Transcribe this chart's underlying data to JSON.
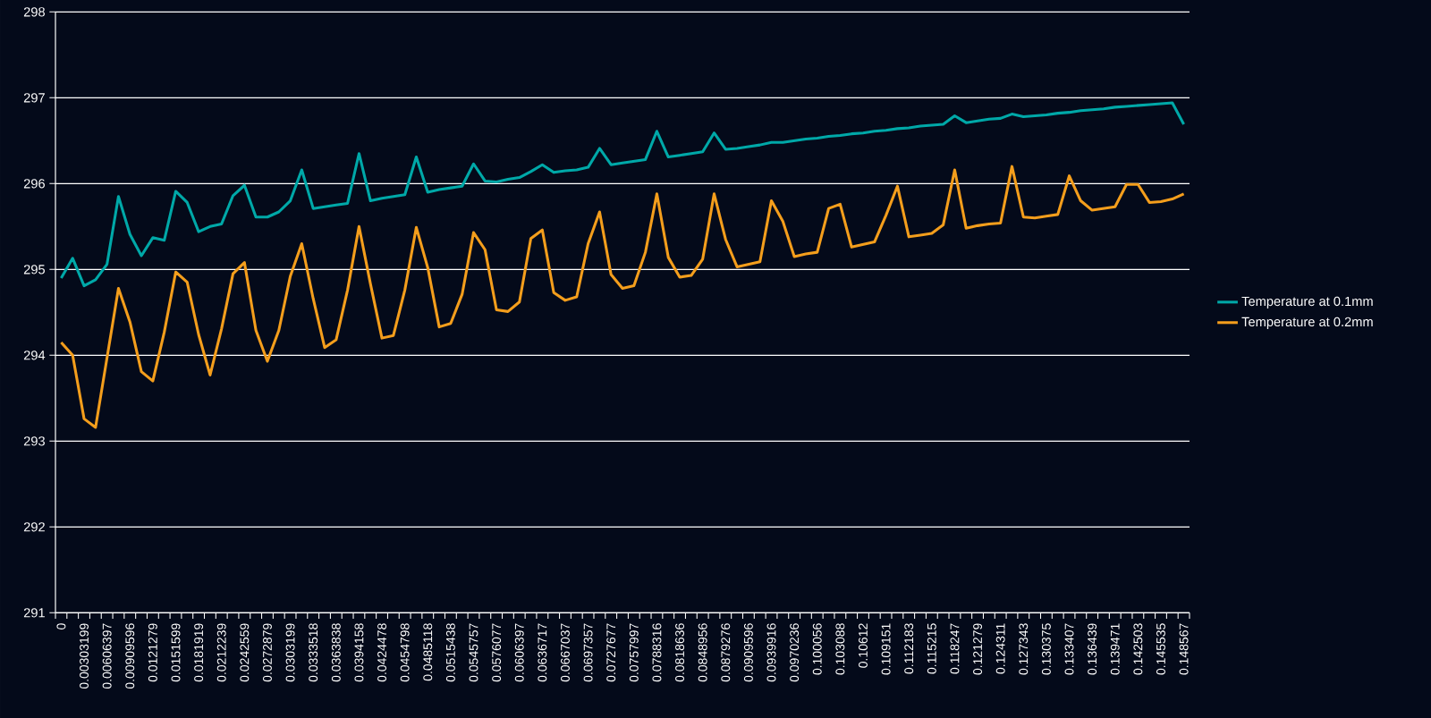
{
  "chart_data": {
    "type": "line",
    "categories": [
      "0",
      null,
      "0.00303199",
      null,
      "0.00606397",
      null,
      "0.00909596",
      null,
      "0.0121279",
      null,
      "0.0151599",
      null,
      "0.0181919",
      null,
      "0.0212239",
      null,
      "0.0242559",
      null,
      "0.0272879",
      null,
      "0.0303199",
      null,
      "0.0333518",
      null,
      "0.0363838",
      null,
      "0.0394158",
      null,
      "0.0424478",
      null,
      "0.0454798",
      null,
      "0.0485118",
      null,
      "0.0515438",
      null,
      "0.0545757",
      null,
      "0.0576077",
      null,
      "0.0606397",
      null,
      "0.0636717",
      null,
      "0.0667037",
      null,
      "0.0697357",
      null,
      "0.0727677",
      null,
      "0.0757997",
      null,
      "0.0788316",
      null,
      "0.0818636",
      null,
      "0.0848956",
      null,
      "0.0879276",
      null,
      "0.0909596",
      null,
      "0.0939916",
      null,
      "0.0970236",
      null,
      "0.100056",
      null,
      "0.103088",
      null,
      "0.10612",
      null,
      "0.109151",
      null,
      "0.112183",
      null,
      "0.115215",
      null,
      "0.118247",
      null,
      "0.121279",
      null,
      "0.124311",
      null,
      "0.127343",
      null,
      "0.130375",
      null,
      "0.133407",
      null,
      "0.136439",
      null,
      "0.139471",
      null,
      "0.142503",
      null,
      "0.145535",
      null,
      "0.148567"
    ],
    "series": [
      {
        "name": "Temperature at 0.1mm",
        "color": "#00a8a8",
        "values": [
          294.9,
          295.13,
          294.81,
          294.88,
          295.06,
          295.85,
          295.41,
          295.16,
          295.37,
          295.34,
          295.91,
          295.78,
          295.44,
          295.5,
          295.53,
          295.86,
          295.98,
          295.61,
          295.61,
          295.67,
          295.8,
          296.16,
          295.71,
          295.73,
          295.75,
          295.77,
          296.35,
          295.8,
          295.83,
          295.85,
          295.87,
          296.31,
          295.9,
          295.93,
          295.95,
          295.97,
          296.23,
          296.03,
          296.02,
          296.05,
          296.07,
          296.14,
          296.22,
          296.13,
          296.15,
          296.16,
          296.19,
          296.41,
          296.22,
          296.24,
          296.26,
          296.28,
          296.61,
          296.31,
          296.33,
          296.35,
          296.37,
          296.59,
          296.4,
          296.41,
          296.43,
          296.45,
          296.48,
          296.48,
          296.5,
          296.52,
          296.53,
          296.55,
          296.56,
          296.58,
          296.59,
          296.61,
          296.62,
          296.64,
          296.65,
          296.67,
          296.68,
          296.69,
          296.79,
          296.71,
          296.73,
          296.75,
          296.76,
          296.81,
          296.78,
          296.79,
          296.8,
          296.82,
          296.83,
          296.85,
          296.86,
          296.87,
          296.89,
          296.9,
          296.91,
          296.92,
          296.93,
          296.94,
          296.69
        ]
      },
      {
        "name": "Temperature at 0.2mm",
        "color": "#f49e1c",
        "values": [
          294.15,
          294.0,
          293.26,
          293.16,
          293.97,
          294.78,
          294.39,
          293.81,
          293.7,
          294.27,
          294.97,
          294.85,
          294.24,
          293.77,
          294.31,
          294.95,
          295.08,
          294.29,
          293.93,
          294.29,
          294.92,
          295.3,
          294.66,
          294.09,
          294.18,
          294.76,
          295.5,
          294.83,
          294.2,
          294.23,
          294.76,
          295.49,
          295.02,
          294.33,
          294.37,
          294.71,
          295.43,
          295.23,
          294.53,
          294.51,
          294.62,
          295.36,
          295.46,
          294.73,
          294.64,
          294.68,
          295.3,
          295.67,
          294.94,
          294.78,
          294.81,
          295.2,
          295.88,
          295.14,
          294.91,
          294.93,
          295.12,
          295.88,
          295.35,
          295.03,
          295.06,
          295.09,
          295.8,
          295.56,
          295.15,
          295.18,
          295.2,
          295.71,
          295.76,
          295.26,
          295.29,
          295.32,
          295.63,
          295.97,
          295.38,
          295.4,
          295.42,
          295.52,
          296.16,
          295.48,
          295.51,
          295.53,
          295.54,
          296.2,
          295.61,
          295.6,
          295.62,
          295.64,
          296.09,
          295.8,
          295.69,
          295.71,
          295.73,
          295.99,
          295.99,
          295.78,
          295.79,
          295.82,
          295.88
        ]
      }
    ],
    "ylim": [
      291,
      298
    ],
    "yticks": [
      291,
      292,
      293,
      294,
      295,
      296,
      297,
      298
    ],
    "grid": "y",
    "legend": "right",
    "marker": "none",
    "line_style": "solid"
  }
}
